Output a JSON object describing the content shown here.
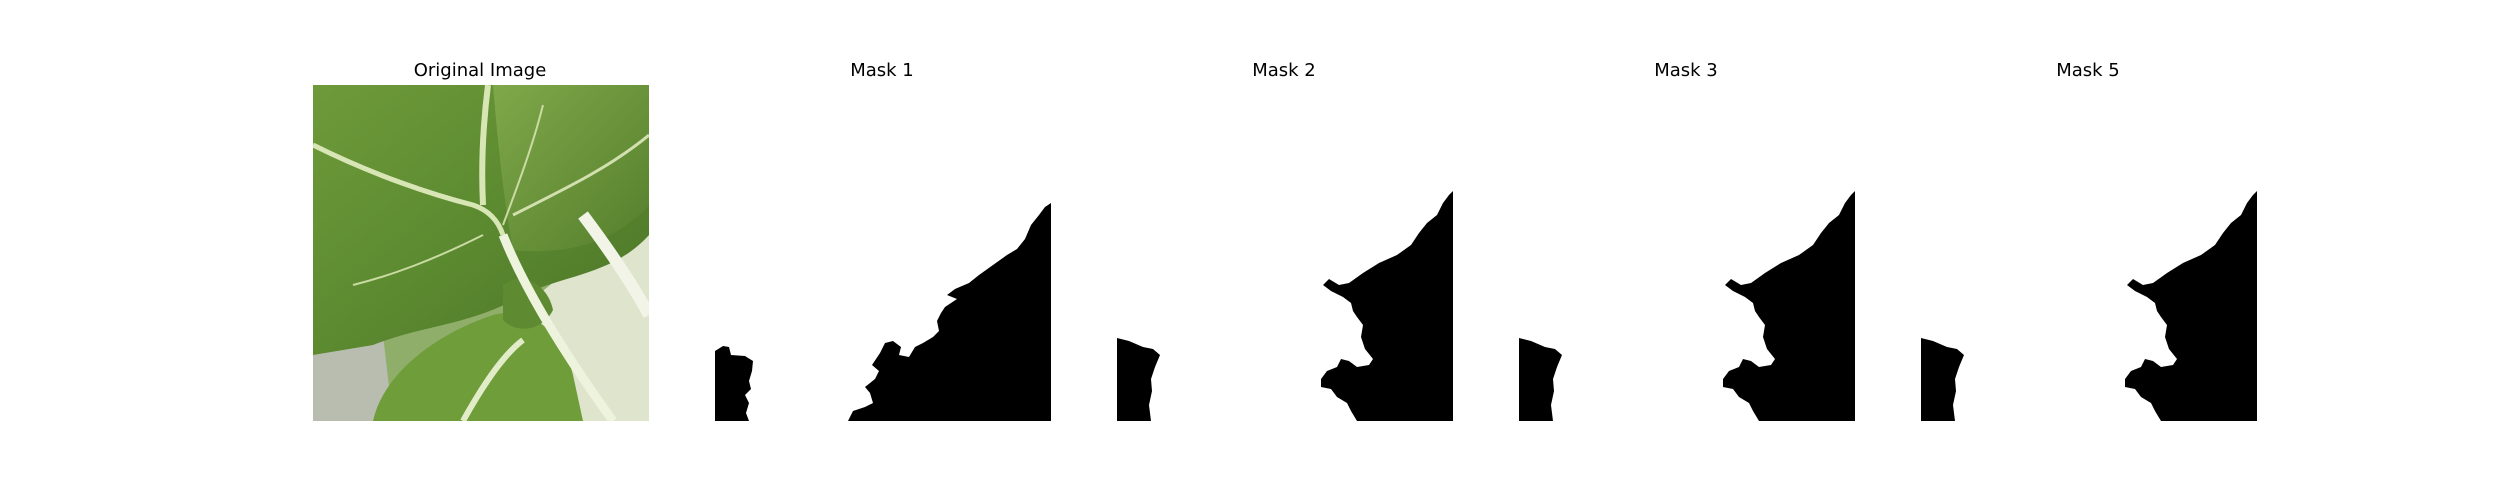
{
  "figure": {
    "panels": [
      {
        "title": "Original Image",
        "kind": "photo"
      },
      {
        "title": "Mask 1",
        "kind": "mask"
      },
      {
        "title": "Mask 2",
        "kind": "mask"
      },
      {
        "title": "Mask 3",
        "kind": "mask"
      },
      {
        "title": "Mask 5",
        "kind": "mask"
      }
    ]
  },
  "colors": {
    "background": "#ffffff",
    "mask_foreground": "#000000",
    "leaf_dark": "#4f7a2e",
    "leaf_mid": "#6b9a3c",
    "vein": "#d6e4b8",
    "stem": "#e9efd8"
  }
}
